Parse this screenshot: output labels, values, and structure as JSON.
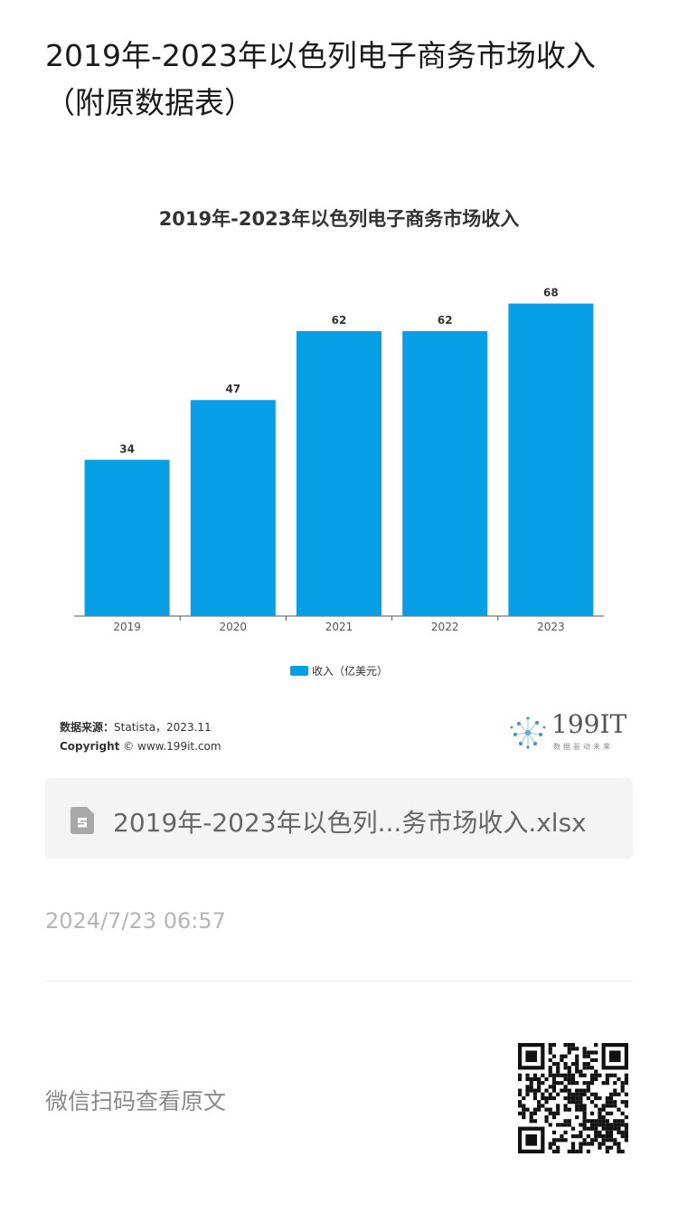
{
  "article": {
    "title": "2019年-2023年以色列电子商务市场收入（附原数据表）"
  },
  "chart_data": {
    "type": "bar",
    "title": "2019年-2023年以色列电子商务市场收入",
    "categories": [
      "2019",
      "2020",
      "2021",
      "2022",
      "2023"
    ],
    "series": [
      {
        "name": "收入（亿美元）",
        "values": [
          34,
          47,
          62,
          62,
          68
        ]
      }
    ],
    "ylim": [
      0,
      75
    ],
    "grid": false,
    "legend_position": "bottom",
    "bar_color": "#069fe6"
  },
  "source": {
    "label": "数据来源：",
    "value": "Statista，2023.11",
    "copyright_label": "Copyright",
    "copyright_value": "© www.199it.com"
  },
  "brand": {
    "logo_text": "199IT",
    "tagline": "数据驱动未来"
  },
  "file": {
    "name": "2019年-2023年以色列...务市场收入.xlsx",
    "icon": "spreadsheet-file-icon"
  },
  "timestamp": "2024/7/23 06:57",
  "footer": {
    "scan_text": "微信扫码查看原文",
    "qr_icon": "qr-code-icon"
  }
}
